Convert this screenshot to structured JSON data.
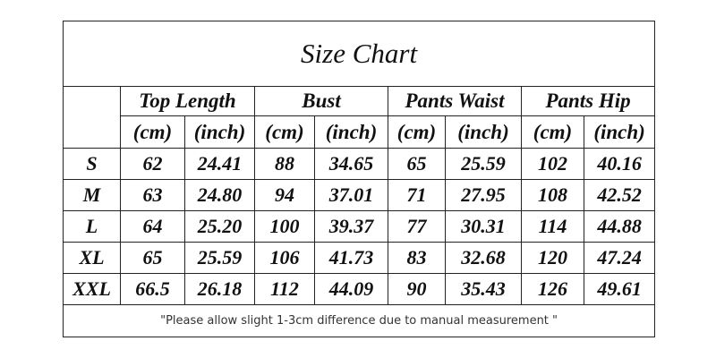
{
  "title": "Size Chart",
  "columns": [
    {
      "label": "Top Length",
      "units": [
        "(cm)",
        "(inch)"
      ]
    },
    {
      "label": "Bust",
      "units": [
        "(cm)",
        "(inch)"
      ]
    },
    {
      "label": "Pants Waist",
      "units": [
        "(cm)",
        "(inch)"
      ]
    },
    {
      "label": "Pants Hip",
      "units": [
        "(cm)",
        "(inch)"
      ]
    }
  ],
  "rows": [
    {
      "size": "S",
      "cells": [
        "62",
        "24.41",
        "88",
        "34.65",
        "65",
        "25.59",
        "102",
        "40.16"
      ]
    },
    {
      "size": "M",
      "cells": [
        "63",
        "24.80",
        "94",
        "37.01",
        "71",
        "27.95",
        "108",
        "42.52"
      ]
    },
    {
      "size": "L",
      "cells": [
        "64",
        "25.20",
        "100",
        "39.37",
        "77",
        "30.31",
        "114",
        "44.88"
      ]
    },
    {
      "size": "XL",
      "cells": [
        "65",
        "25.59",
        "106",
        "41.73",
        "83",
        "32.68",
        "120",
        "47.24"
      ]
    },
    {
      "size": "XXL",
      "cells": [
        "66.5",
        "26.18",
        "112",
        "44.09",
        "90",
        "35.43",
        "126",
        "49.61"
      ]
    }
  ],
  "note": "\"Please allow slight 1-3cm difference due to manual measurement \""
}
